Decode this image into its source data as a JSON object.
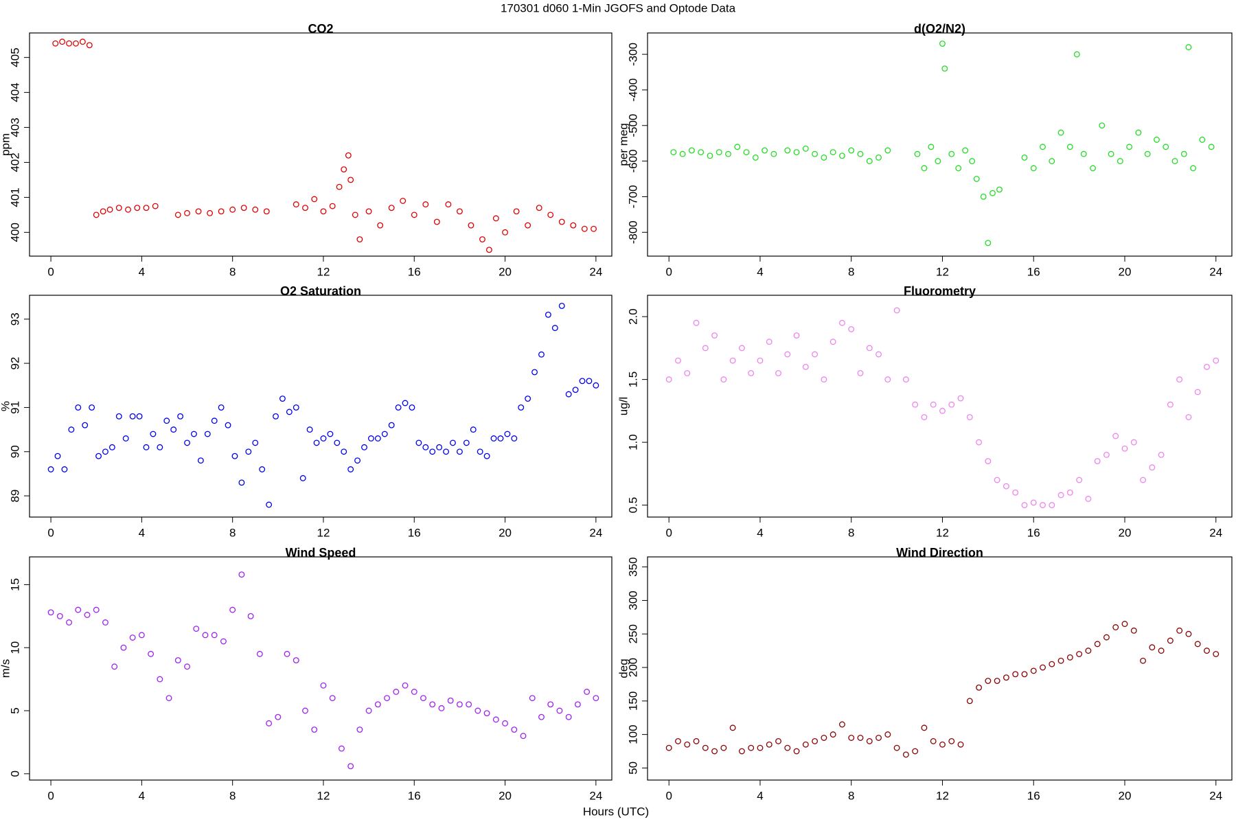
{
  "title": "170301   d060   1-Min  JGOFS and Optode Data",
  "xlabel": "Hours (UTC)",
  "chart_data": [
    {
      "type": "scatter",
      "title": "CO2",
      "ylabel": "ppm",
      "color": "#e00000",
      "xlim": [
        -0.94,
        24.7
      ],
      "xticks": [
        0,
        4,
        8,
        12,
        16,
        20,
        24
      ],
      "ylim": [
        399.32,
        405.7
      ],
      "yticks": [
        400,
        401,
        402,
        403,
        404,
        405
      ],
      "x": [
        0.2,
        0.5,
        0.8,
        1.1,
        1.4,
        1.7,
        2.0,
        2.3,
        2.6,
        3.0,
        3.4,
        3.8,
        4.2,
        4.6,
        5.6,
        6.0,
        6.5,
        7.0,
        7.5,
        8.0,
        8.5,
        9.0,
        9.5,
        10.8,
        11.2,
        11.6,
        12.0,
        12.4,
        12.7,
        12.9,
        13.1,
        13.2,
        13.4,
        13.6,
        14.0,
        14.5,
        15.0,
        15.5,
        16.0,
        16.5,
        17.0,
        17.5,
        18.0,
        18.5,
        19.0,
        19.3,
        19.6,
        20.0,
        20.5,
        21.0,
        21.5,
        22.0,
        22.5,
        23.0,
        23.5,
        23.9
      ],
      "values": [
        405.4,
        405.45,
        405.4,
        405.4,
        405.45,
        405.35,
        400.5,
        400.6,
        400.65,
        400.7,
        400.65,
        400.7,
        400.7,
        400.75,
        400.5,
        400.55,
        400.6,
        400.55,
        400.6,
        400.65,
        400.7,
        400.65,
        400.6,
        400.8,
        400.7,
        400.95,
        400.6,
        400.75,
        401.3,
        401.8,
        402.2,
        401.5,
        400.5,
        399.8,
        400.6,
        400.2,
        400.7,
        400.9,
        400.5,
        400.8,
        400.3,
        400.8,
        400.6,
        400.2,
        399.8,
        399.5,
        400.4,
        400.0,
        400.6,
        400.2,
        400.7,
        400.5,
        400.3,
        400.2,
        400.1,
        400.1
      ]
    },
    {
      "type": "scatter",
      "title": "d(O2/N2)",
      "ylabel": "per meg",
      "color": "#22dd22",
      "xlim": [
        -0.94,
        24.7
      ],
      "xticks": [
        0,
        4,
        8,
        12,
        16,
        20,
        24
      ],
      "ylim": [
        -867,
        -240
      ],
      "yticks": [
        -800,
        -700,
        -600,
        -500,
        -400,
        -300
      ],
      "x": [
        0.2,
        0.6,
        1.0,
        1.4,
        1.8,
        2.2,
        2.6,
        3.0,
        3.4,
        3.8,
        4.2,
        4.6,
        5.2,
        5.6,
        6.0,
        6.4,
        6.8,
        7.2,
        7.6,
        8.0,
        8.4,
        8.8,
        9.2,
        9.6,
        10.9,
        11.2,
        11.5,
        11.8,
        12.0,
        12.1,
        12.4,
        12.7,
        13.0,
        13.3,
        13.5,
        13.8,
        14.0,
        14.2,
        14.5,
        15.6,
        16.0,
        16.4,
        16.8,
        17.2,
        17.6,
        17.9,
        18.2,
        18.6,
        19.0,
        19.4,
        19.8,
        20.2,
        20.6,
        21.0,
        21.4,
        21.8,
        22.2,
        22.6,
        22.8,
        23.0,
        23.4,
        23.8
      ],
      "values": [
        -575,
        -580,
        -570,
        -575,
        -585,
        -575,
        -580,
        -560,
        -575,
        -590,
        -570,
        -580,
        -570,
        -575,
        -565,
        -580,
        -590,
        -575,
        -585,
        -570,
        -580,
        -600,
        -590,
        -570,
        -580,
        -620,
        -560,
        -600,
        -270,
        -340,
        -580,
        -620,
        -570,
        -600,
        -650,
        -700,
        -830,
        -690,
        -680,
        -590,
        -620,
        -560,
        -600,
        -520,
        -560,
        -300,
        -580,
        -620,
        -500,
        -580,
        -600,
        -560,
        -520,
        -580,
        -540,
        -560,
        -600,
        -580,
        -280,
        -620,
        -540,
        -560
      ]
    },
    {
      "type": "scatter",
      "title": "O2 Saturation",
      "ylabel": "%",
      "color": "#0000ee",
      "xlim": [
        -0.94,
        24.7
      ],
      "xticks": [
        0,
        4,
        8,
        12,
        16,
        20,
        24
      ],
      "ylim": [
        88.52,
        93.54
      ],
      "yticks": [
        89,
        90,
        91,
        92,
        93
      ],
      "x": [
        0,
        0.3,
        0.6,
        0.9,
        1.2,
        1.5,
        1.8,
        2.1,
        2.4,
        2.7,
        3.0,
        3.3,
        3.6,
        3.9,
        4.2,
        4.5,
        4.8,
        5.1,
        5.4,
        5.7,
        6.0,
        6.3,
        6.6,
        6.9,
        7.2,
        7.5,
        7.8,
        8.1,
        8.4,
        8.7,
        9.0,
        9.3,
        9.6,
        9.9,
        10.2,
        10.5,
        10.8,
        11.1,
        11.4,
        11.7,
        12.0,
        12.3,
        12.6,
        12.9,
        13.2,
        13.5,
        13.8,
        14.1,
        14.4,
        14.7,
        15.0,
        15.3,
        15.6,
        15.9,
        16.2,
        16.5,
        16.8,
        17.1,
        17.4,
        17.7,
        18.0,
        18.3,
        18.6,
        18.9,
        19.2,
        19.5,
        19.8,
        20.1,
        20.4,
        20.7,
        21.0,
        21.3,
        21.6,
        21.9,
        22.2,
        22.5,
        22.8,
        23.1,
        23.4,
        23.7,
        24.0
      ],
      "values": [
        89.6,
        89.9,
        89.6,
        90.5,
        91.0,
        90.6,
        91.0,
        89.9,
        90.0,
        90.1,
        90.8,
        90.3,
        90.8,
        90.8,
        90.1,
        90.4,
        90.1,
        90.7,
        90.5,
        90.8,
        90.2,
        90.4,
        89.8,
        90.4,
        90.7,
        91.0,
        90.6,
        89.9,
        89.3,
        90.0,
        90.2,
        89.6,
        88.8,
        90.8,
        91.2,
        90.9,
        91.0,
        89.4,
        90.5,
        90.2,
        90.3,
        90.4,
        90.2,
        90.0,
        89.6,
        89.8,
        90.1,
        90.3,
        90.3,
        90.4,
        90.6,
        91.0,
        91.1,
        91.0,
        90.2,
        90.1,
        90.0,
        90.1,
        90.0,
        90.2,
        90.0,
        90.2,
        90.5,
        90.0,
        89.9,
        90.3,
        90.3,
        90.4,
        90.3,
        91.0,
        91.2,
        91.8,
        92.2,
        93.1,
        92.8,
        93.3,
        91.3,
        91.4,
        91.6,
        91.6,
        91.5
      ]
    },
    {
      "type": "scatter",
      "title": "Fluorometry",
      "ylabel": "ug/l",
      "color": "#ee82ee",
      "xlim": [
        -0.94,
        24.7
      ],
      "xticks": [
        0,
        4,
        8,
        12,
        16,
        20,
        24
      ],
      "ylim": [
        0.405,
        2.17
      ],
      "yticks": [
        {
          "value": 0.5,
          "label": "0.5"
        },
        {
          "value": 1,
          "label": "1.0"
        },
        1.5,
        {
          "value": 2,
          "label": "2.0"
        }
      ],
      "x": [
        0,
        0.4,
        0.8,
        1.2,
        1.6,
        2.0,
        2.4,
        2.8,
        3.2,
        3.6,
        4.0,
        4.4,
        4.8,
        5.2,
        5.6,
        6.0,
        6.4,
        6.8,
        7.2,
        7.6,
        8.0,
        8.4,
        8.8,
        9.2,
        9.6,
        10.0,
        10.4,
        10.8,
        11.2,
        11.6,
        12.0,
        12.4,
        12.8,
        13.2,
        13.6,
        14.0,
        14.4,
        14.8,
        15.2,
        15.6,
        16.0,
        16.4,
        16.8,
        17.2,
        17.6,
        18.0,
        18.4,
        18.8,
        19.2,
        19.6,
        20.0,
        20.4,
        20.8,
        21.2,
        21.6,
        22.0,
        22.4,
        22.8,
        23.2,
        23.6,
        24.0
      ],
      "values": [
        1.5,
        1.65,
        1.55,
        1.95,
        1.75,
        1.85,
        1.5,
        1.65,
        1.75,
        1.55,
        1.65,
        1.8,
        1.55,
        1.7,
        1.85,
        1.6,
        1.7,
        1.5,
        1.8,
        1.95,
        1.9,
        1.55,
        1.75,
        1.7,
        1.5,
        2.05,
        1.5,
        1.3,
        1.2,
        1.3,
        1.25,
        1.3,
        1.35,
        1.2,
        1.0,
        0.85,
        0.7,
        0.65,
        0.6,
        0.5,
        0.52,
        0.5,
        0.5,
        0.58,
        0.6,
        0.7,
        0.55,
        0.85,
        0.9,
        1.05,
        0.95,
        1.0,
        0.7,
        0.8,
        0.9,
        1.3,
        1.5,
        1.2,
        1.4,
        1.6,
        1.65
      ]
    },
    {
      "type": "scatter",
      "title": "Wind Speed",
      "ylabel": "m/s",
      "color": "#a020f0",
      "xlim": [
        -0.94,
        24.7
      ],
      "xticks": [
        0,
        4,
        8,
        12,
        16,
        20,
        24
      ],
      "ylim": [
        -0.5,
        17.2
      ],
      "yticks": [
        0,
        5,
        10,
        15
      ],
      "x": [
        0,
        0.4,
        0.8,
        1.2,
        1.6,
        2.0,
        2.4,
        2.8,
        3.2,
        3.6,
        4.0,
        4.4,
        4.8,
        5.2,
        5.6,
        6.0,
        6.4,
        6.8,
        7.2,
        7.6,
        8.0,
        8.4,
        8.8,
        9.2,
        9.6,
        10.0,
        10.4,
        10.8,
        11.2,
        11.6,
        12.0,
        12.4,
        12.8,
        13.2,
        13.6,
        14.0,
        14.4,
        14.8,
        15.2,
        15.6,
        16.0,
        16.4,
        16.8,
        17.2,
        17.6,
        18.0,
        18.4,
        18.8,
        19.2,
        19.6,
        20.0,
        20.4,
        20.8,
        21.2,
        21.6,
        22.0,
        22.4,
        22.8,
        23.2,
        23.6,
        24.0
      ],
      "values": [
        12.8,
        12.5,
        12.0,
        13.0,
        12.6,
        13.0,
        12.0,
        8.5,
        10.0,
        10.8,
        11.0,
        9.5,
        7.5,
        6.0,
        9.0,
        8.5,
        11.5,
        11.0,
        11.0,
        10.5,
        13.0,
        15.8,
        12.5,
        9.5,
        4.0,
        4.5,
        9.5,
        9.0,
        5.0,
        3.5,
        7.0,
        6.0,
        2.0,
        0.6,
        3.5,
        5.0,
        5.5,
        6.0,
        6.5,
        7.0,
        6.5,
        6.0,
        5.5,
        5.2,
        5.8,
        5.5,
        5.5,
        5.0,
        4.8,
        4.3,
        4.0,
        3.5,
        3.0,
        6.0,
        4.5,
        5.5,
        5.0,
        4.5,
        5.5,
        6.5,
        6.0
      ]
    },
    {
      "type": "scatter",
      "title": "Wind Direction",
      "ylabel": "deg",
      "color": "#8b0000",
      "xlim": [
        -0.94,
        24.7
      ],
      "xticks": [
        0,
        4,
        8,
        12,
        16,
        20,
        24
      ],
      "ylim": [
        32,
        365
      ],
      "yticks": [
        50,
        100,
        150,
        200,
        250,
        300,
        350
      ],
      "x": [
        0,
        0.4,
        0.8,
        1.2,
        1.6,
        2.0,
        2.4,
        2.8,
        3.2,
        3.6,
        4.0,
        4.4,
        4.8,
        5.2,
        5.6,
        6.0,
        6.4,
        6.8,
        7.2,
        7.6,
        8.0,
        8.4,
        8.8,
        9.2,
        9.6,
        10.0,
        10.4,
        10.8,
        11.2,
        11.6,
        12.0,
        12.4,
        12.8,
        13.2,
        13.6,
        14.0,
        14.4,
        14.8,
        15.2,
        15.6,
        16.0,
        16.4,
        16.8,
        17.2,
        17.6,
        18.0,
        18.4,
        18.8,
        19.2,
        19.6,
        20.0,
        20.4,
        20.8,
        21.2,
        21.6,
        22.0,
        22.4,
        22.8,
        23.2,
        23.6,
        24.0
      ],
      "values": [
        80,
        90,
        85,
        90,
        80,
        75,
        80,
        110,
        75,
        80,
        80,
        85,
        90,
        80,
        75,
        85,
        90,
        95,
        100,
        115,
        95,
        95,
        90,
        95,
        100,
        80,
        70,
        75,
        110,
        90,
        85,
        90,
        85,
        150,
        170,
        180,
        180,
        185,
        190,
        190,
        195,
        200,
        205,
        210,
        215,
        220,
        225,
        235,
        245,
        260,
        265,
        255,
        210,
        230,
        225,
        240,
        255,
        250,
        235,
        225,
        220
      ]
    }
  ]
}
